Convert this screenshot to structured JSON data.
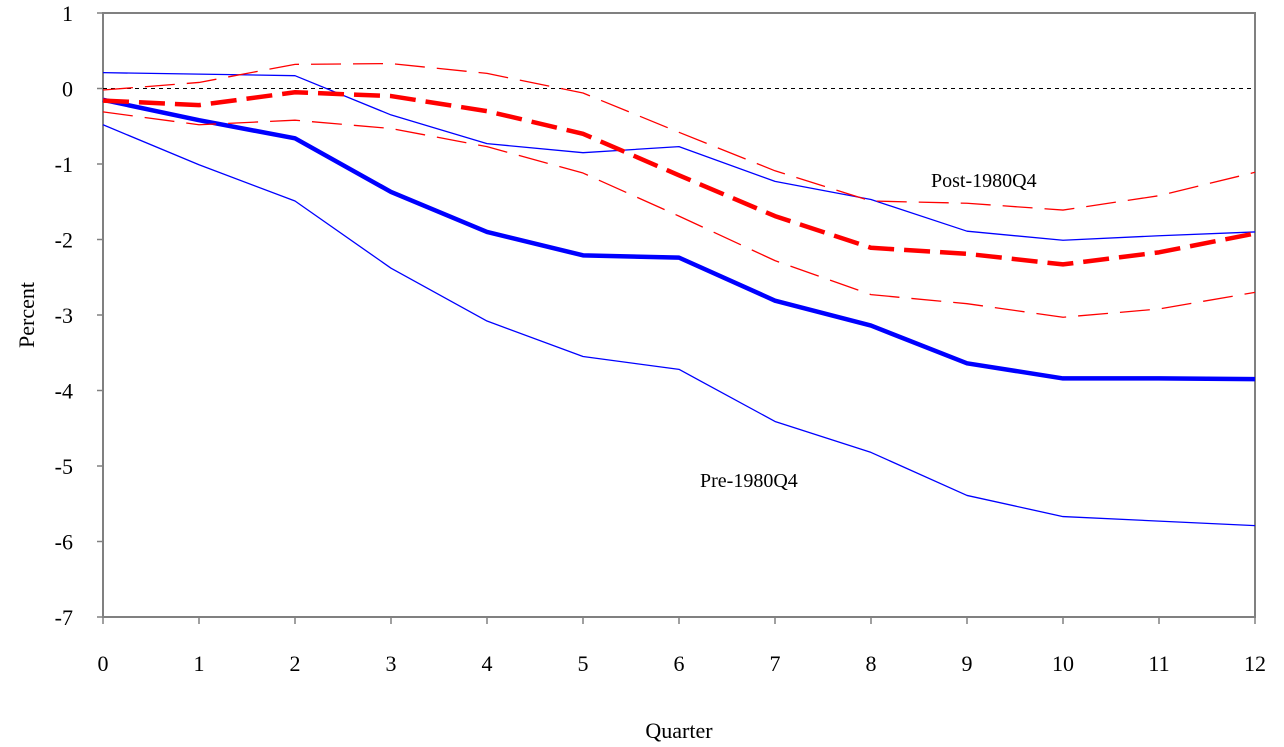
{
  "chart_data": {
    "type": "line",
    "title": "",
    "xlabel": "Quarter",
    "ylabel": "Percent",
    "xlim": [
      0,
      12
    ],
    "ylim": [
      -7,
      1
    ],
    "x": [
      0,
      1,
      2,
      3,
      4,
      5,
      6,
      7,
      8,
      9,
      10,
      11,
      12
    ],
    "x_ticks": [
      "0",
      "1",
      "2",
      "3",
      "4",
      "5",
      "6",
      "7",
      "8",
      "9",
      "10",
      "11",
      "12"
    ],
    "y_ticks": [
      {
        "value": 1,
        "label": "1"
      },
      {
        "value": 0,
        "label": "0"
      },
      {
        "value": -1,
        "label": "-1"
      },
      {
        "value": -2,
        "label": "-2"
      },
      {
        "value": -3,
        "label": "-3"
      },
      {
        "value": -4,
        "label": "-4"
      },
      {
        "value": -5,
        "label": "-5"
      },
      {
        "value": -6,
        "label": "-6"
      },
      {
        "value": -7,
        "label": "-7"
      }
    ],
    "zero_line": true,
    "grid": false,
    "series": [
      {
        "key": "pre-upper",
        "color": "#0000ff",
        "style": "solid",
        "weight": "thin",
        "values": [
          0.21,
          0.19,
          0.17,
          -0.35,
          -0.73,
          -0.85,
          -0.77,
          -1.23,
          -1.47,
          -1.89,
          -2.01,
          -1.95,
          -1.9
        ]
      },
      {
        "key": "pre-point",
        "color": "#0000ff",
        "style": "solid",
        "weight": "thick",
        "values": [
          -0.15,
          -0.42,
          -0.66,
          -1.37,
          -1.9,
          -2.21,
          -2.24,
          -2.81,
          -3.14,
          -3.64,
          -3.84,
          -3.84,
          -3.85
        ]
      },
      {
        "key": "pre-lower",
        "color": "#0000ff",
        "style": "solid",
        "weight": "thin",
        "values": [
          -0.48,
          -1.01,
          -1.49,
          -2.38,
          -3.08,
          -3.55,
          -3.72,
          -4.41,
          -4.82,
          -5.39,
          -5.67,
          -5.73,
          -5.79
        ]
      },
      {
        "key": "post-upper",
        "color": "#ff0000",
        "style": "dashed",
        "weight": "thin",
        "values": [
          -0.02,
          0.08,
          0.32,
          0.33,
          0.2,
          -0.06,
          -0.58,
          -1.09,
          -1.49,
          -1.52,
          -1.61,
          -1.42,
          -1.11
        ]
      },
      {
        "key": "post-point",
        "color": "#ff0000",
        "style": "dashed",
        "weight": "thick",
        "values": [
          -0.16,
          -0.22,
          -0.05,
          -0.1,
          -0.3,
          -0.6,
          -1.15,
          -1.69,
          -2.11,
          -2.19,
          -2.33,
          -2.17,
          -1.92
        ]
      },
      {
        "key": "post-lower",
        "color": "#ff0000",
        "style": "dashed",
        "weight": "thin",
        "values": [
          -0.31,
          -0.48,
          -0.42,
          -0.53,
          -0.77,
          -1.12,
          -1.69,
          -2.28,
          -2.73,
          -2.85,
          -3.03,
          -2.92,
          -2.7
        ]
      }
    ],
    "annotations": [
      {
        "key": "post",
        "text": "Post-1980Q4"
      },
      {
        "key": "pre",
        "text": "Pre-1980Q4"
      }
    ]
  }
}
